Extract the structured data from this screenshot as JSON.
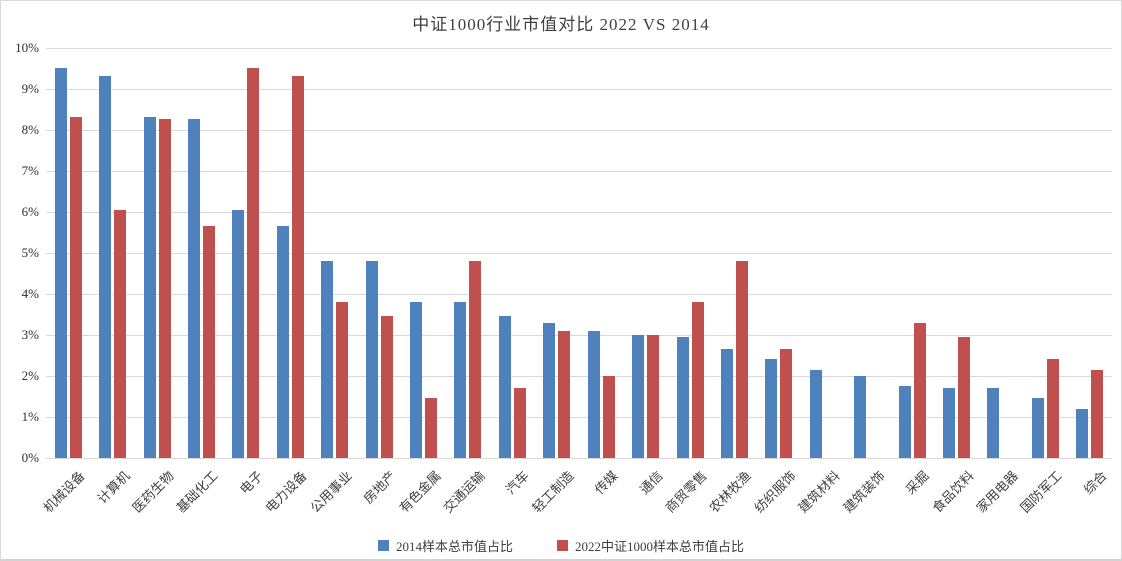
{
  "title": "中证1000行业市值对比 2022 VS 2014",
  "colors": {
    "series_2014": "#4F81BD",
    "series_2022": "#C0504D",
    "gridline": "#D9D9D9",
    "text": "#3F3F3F"
  },
  "y_axis": {
    "tick_labels": [
      "0%",
      "1%",
      "2%",
      "3%",
      "4%",
      "5%",
      "6%",
      "7%",
      "8%",
      "9%",
      "10%"
    ],
    "min": 0,
    "max": 10
  },
  "legend": [
    {
      "label": "2014样本总市值占比",
      "color": "#4F81BD"
    },
    {
      "label": "2022中证1000样本总市值占比",
      "color": "#C0504D"
    }
  ],
  "chart_data": {
    "type": "bar",
    "title": "中证1000行业市值对比 2022 VS 2014",
    "categories": [
      "机械设备",
      "计算机",
      "医药生物",
      "基础化工",
      "电子",
      "电力设备",
      "公用事业",
      "房地产",
      "有色金属",
      "交通运输",
      "汽车",
      "轻工制造",
      "传媒",
      "通信",
      "商贸零售",
      "农林牧渔",
      "纺织服饰",
      "建筑材料",
      "建筑装饰",
      "采掘",
      "食品饮料",
      "家用电器",
      "国防军工",
      "综合"
    ],
    "series": [
      {
        "name": "2014样本总市值占比",
        "color": "#4F81BD",
        "values": [
          9.5,
          9.3,
          8.3,
          8.25,
          6.05,
          5.65,
          4.8,
          4.8,
          3.8,
          3.8,
          3.45,
          3.3,
          3.1,
          3.0,
          2.95,
          2.65,
          2.4,
          2.15,
          2.0,
          1.75,
          1.7,
          1.7,
          1.45,
          1.2
        ]
      },
      {
        "name": "2022中证1000样本总市值占比",
        "color": "#C0504D",
        "values": [
          8.3,
          6.05,
          8.25,
          5.65,
          9.5,
          9.3,
          3.8,
          3.45,
          1.45,
          4.8,
          1.7,
          3.1,
          2.0,
          3.0,
          3.8,
          4.8,
          2.65,
          null,
          null,
          3.3,
          2.95,
          null,
          2.4,
          2.15
        ]
      }
    ],
    "xlabel": "",
    "ylabel": "",
    "ylim": [
      0,
      10
    ],
    "y_tick_format": "percent",
    "grid": true,
    "legend_position": "bottom"
  }
}
